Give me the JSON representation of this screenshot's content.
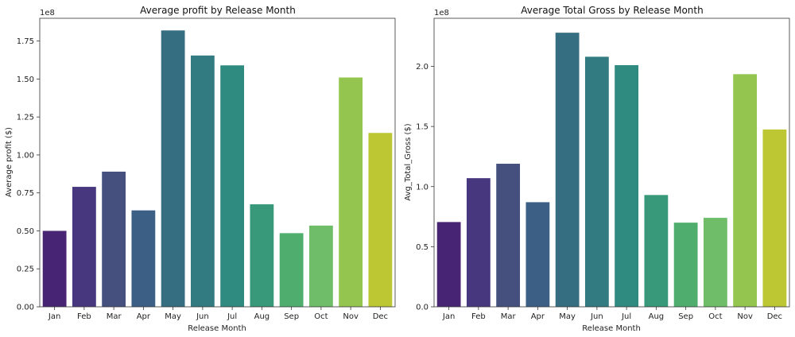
{
  "chart_data": [
    {
      "type": "bar",
      "title": "Average profit by Release Month",
      "xlabel": "Release Month",
      "ylabel": "Average profit ($)",
      "offset_text": "1e8",
      "ylim": [
        0,
        1.9
      ],
      "yticks": [
        0.0,
        0.25,
        0.5,
        0.75,
        1.0,
        1.25,
        1.5,
        1.75
      ],
      "ytick_labels": [
        "0.00",
        "0.25",
        "0.50",
        "0.75",
        "1.00",
        "1.25",
        "1.50",
        "1.75"
      ],
      "categories": [
        "Jan",
        "Feb",
        "Mar",
        "Apr",
        "May",
        "Jun",
        "Jul",
        "Aug",
        "Sep",
        "Oct",
        "Nov",
        "Dec"
      ],
      "values": [
        0.5,
        0.79,
        0.89,
        0.635,
        1.82,
        1.655,
        1.59,
        0.675,
        0.485,
        0.535,
        1.51,
        1.145
      ],
      "grid": false
    },
    {
      "type": "bar",
      "title": "Average Total Gross by Release Month",
      "xlabel": "Release Month",
      "ylabel": "Avg_Total_Gross ($)",
      "offset_text": "1e8",
      "ylim": [
        0,
        2.4
      ],
      "yticks": [
        0.0,
        0.5,
        1.0,
        1.5,
        2.0
      ],
      "ytick_labels": [
        "0.0",
        "0.5",
        "1.0",
        "1.5",
        "2.0"
      ],
      "categories": [
        "Jan",
        "Feb",
        "Mar",
        "Apr",
        "May",
        "Jun",
        "Jul",
        "Aug",
        "Sep",
        "Oct",
        "Nov",
        "Dec"
      ],
      "values": [
        0.705,
        1.07,
        1.19,
        0.87,
        2.28,
        2.08,
        2.01,
        0.93,
        0.7,
        0.74,
        1.935,
        1.475
      ],
      "grid": false
    }
  ],
  "palette": [
    "#482173",
    "#433e85",
    "#38598c",
    "#2d708e",
    "#25858e",
    "#1e9b8a",
    "#2ab07f",
    "#52c569",
    "#86d549",
    "#c2df23",
    "#4a2e73",
    "#3d4d8a"
  ],
  "bar_colors": [
    "#482475",
    "#46377f",
    "#45507f",
    "#3c5f86",
    "#366e81",
    "#317b81",
    "#2f8a7f",
    "#38997a",
    "#4fae6e",
    "#6fbd69",
    "#94c54f",
    "#bcc733"
  ]
}
